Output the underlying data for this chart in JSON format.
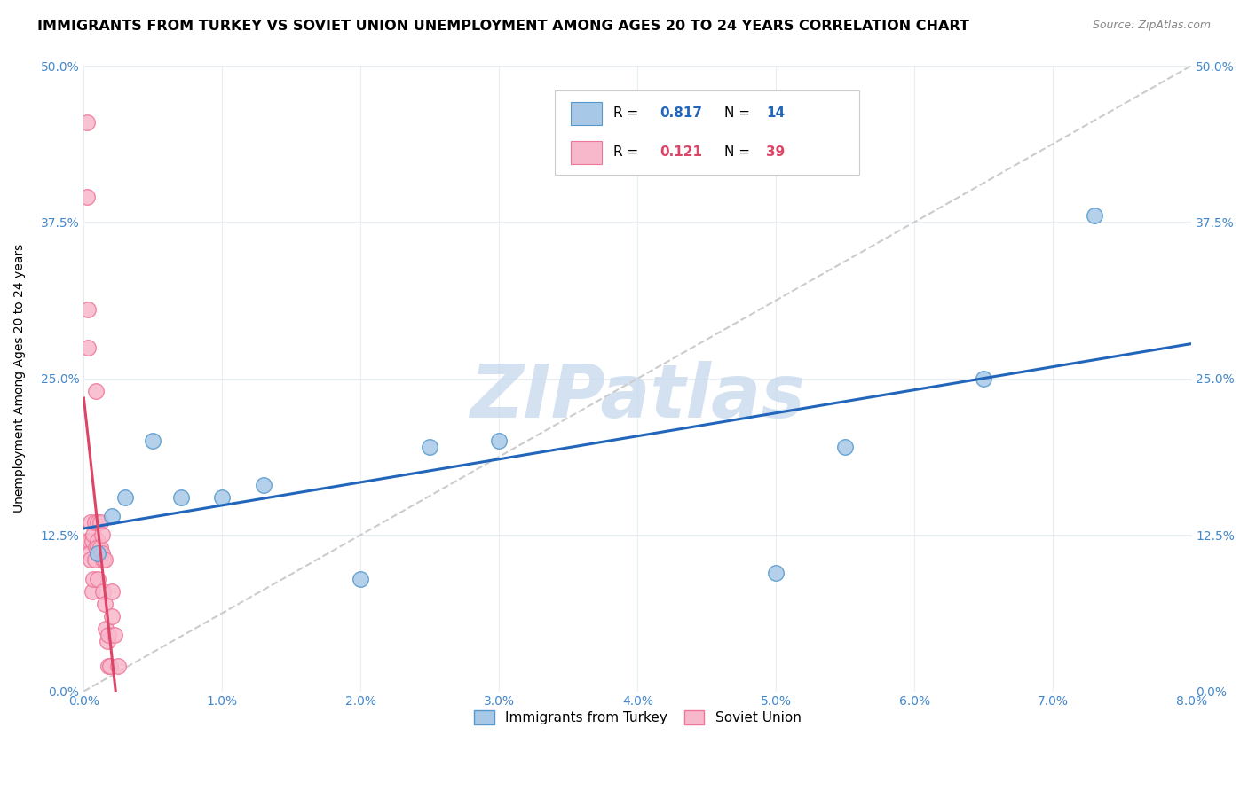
{
  "title": "IMMIGRANTS FROM TURKEY VS SOVIET UNION UNEMPLOYMENT AMONG AGES 20 TO 24 YEARS CORRELATION CHART",
  "source": "Source: ZipAtlas.com",
  "ylabel_label": "Unemployment Among Ages 20 to 24 years",
  "xlim": [
    0.0,
    0.08
  ],
  "ylim": [
    0.0,
    0.5
  ],
  "xtick_vals": [
    0.0,
    0.01,
    0.02,
    0.03,
    0.04,
    0.05,
    0.06,
    0.07,
    0.08
  ],
  "ytick_vals": [
    0.0,
    0.125,
    0.25,
    0.375,
    0.5
  ],
  "turkey_x": [
    0.001,
    0.002,
    0.003,
    0.005,
    0.007,
    0.01,
    0.013,
    0.02,
    0.025,
    0.03,
    0.05,
    0.055,
    0.065,
    0.073
  ],
  "turkey_y": [
    0.11,
    0.14,
    0.155,
    0.2,
    0.155,
    0.155,
    0.165,
    0.09,
    0.195,
    0.2,
    0.095,
    0.195,
    0.25,
    0.38
  ],
  "soviet_x": [
    0.0002,
    0.0002,
    0.0002,
    0.0003,
    0.0003,
    0.0004,
    0.0004,
    0.0005,
    0.0005,
    0.0006,
    0.0006,
    0.0007,
    0.0007,
    0.0008,
    0.0008,
    0.0009,
    0.0009,
    0.001,
    0.001,
    0.001,
    0.001,
    0.001,
    0.0012,
    0.0012,
    0.0013,
    0.0013,
    0.0014,
    0.0014,
    0.0015,
    0.0015,
    0.0016,
    0.0017,
    0.0018,
    0.0018,
    0.0019,
    0.002,
    0.002,
    0.0022,
    0.0025
  ],
  "soviet_y": [
    0.455,
    0.395,
    0.12,
    0.305,
    0.275,
    0.12,
    0.11,
    0.135,
    0.105,
    0.12,
    0.08,
    0.125,
    0.09,
    0.135,
    0.105,
    0.24,
    0.115,
    0.135,
    0.12,
    0.115,
    0.11,
    0.09,
    0.135,
    0.115,
    0.125,
    0.11,
    0.105,
    0.08,
    0.105,
    0.07,
    0.05,
    0.04,
    0.045,
    0.02,
    0.02,
    0.08,
    0.06,
    0.045,
    0.02
  ],
  "turkey_color": "#a8c8e8",
  "soviet_color": "#f8b8cc",
  "turkey_edge_color": "#5599cc",
  "soviet_edge_color": "#ee7799",
  "turkey_line_color": "#2266bb",
  "soviet_line_color": "#dd4466",
  "diag_line_color": "#cccccc",
  "turkey_R": "0.817",
  "turkey_N": "14",
  "soviet_R": "0.121",
  "soviet_N": "39",
  "legend_turkey": "Immigrants from Turkey",
  "legend_soviet": "Soviet Union",
  "watermark_text": "ZIPatlas",
  "watermark_color": "#c8daee",
  "title_fontsize": 11.5,
  "source_fontsize": 9,
  "label_fontsize": 10,
  "tick_fontsize": 10,
  "legend_fontsize": 11,
  "rn_fontsize": 11,
  "axis_color": "#4488cc",
  "grid_color": "#e8eef4",
  "background_color": "#ffffff"
}
